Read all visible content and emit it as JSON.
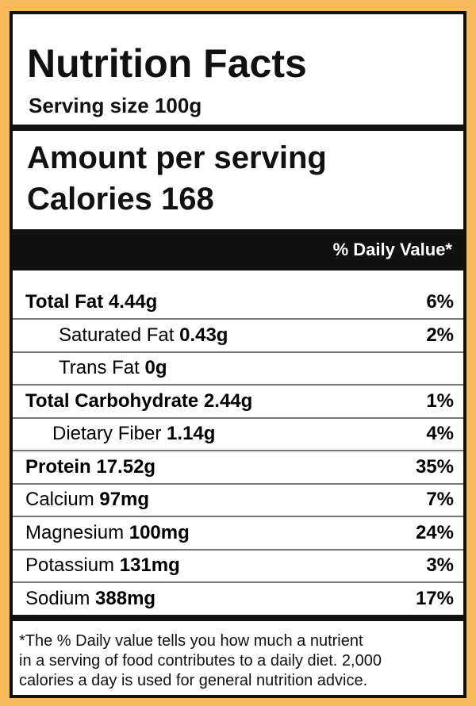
{
  "header": {
    "title": "Nutrition Facts",
    "serving": "Serving size 100g"
  },
  "amount": {
    "title": "Amount per serving",
    "calories_label": "Calories",
    "calories": "168"
  },
  "daily_value_header": "% Daily Value*",
  "rows": [
    {
      "name": "Total Fat",
      "amount": "4.44g",
      "dv": "6%"
    },
    {
      "name": "Saturated Fat",
      "amount": "0.43g",
      "dv": "2%"
    },
    {
      "name": "Trans Fat",
      "amount": "0g"
    },
    {
      "name": "Total Carbohydrate",
      "amount": "2.44g",
      "dv": "1%"
    },
    {
      "name": "Dietary Fiber",
      "amount": "1.14g",
      "dv": "4%"
    },
    {
      "name": "Protein",
      "amount": "17.52g",
      "dv": "35%"
    },
    {
      "name": "Calcium",
      "amount": "97mg",
      "dv": "7%"
    },
    {
      "name": "Magnesium",
      "amount": "100mg",
      "dv": "24%"
    },
    {
      "name": "Potassium",
      "amount": "131mg",
      "dv": "3%"
    },
    {
      "name": "Sodium",
      "amount": "388mg",
      "dv": "17%"
    }
  ],
  "footnote": [
    "*The % Daily value tells you how much a nutrient",
    "in a serving of food contributes to a daily diet. 2,000",
    "calories a day is used for general nutrition advice."
  ]
}
